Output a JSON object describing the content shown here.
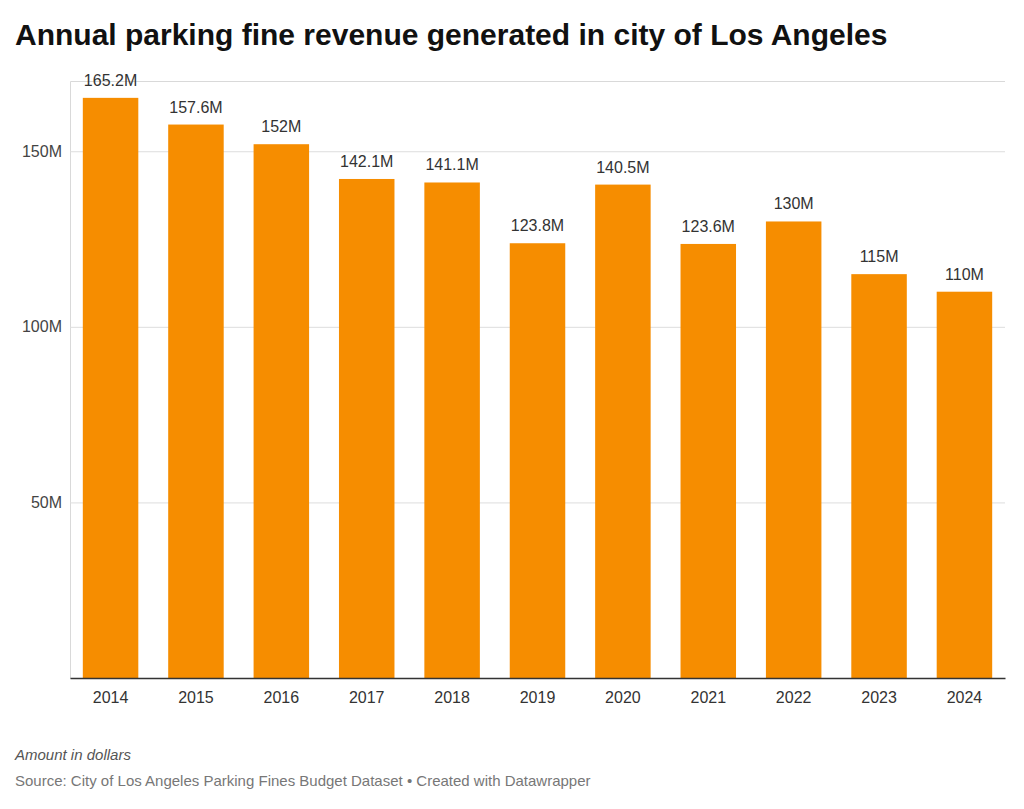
{
  "chart_data": {
    "type": "bar",
    "title": "Annual parking fine revenue generated in city of Los Angeles",
    "notes": [
      "Amount in dollars",
      "Source: City of Los Angeles Parking Fines Budget Dataset • Created with Datawrapper"
    ],
    "categories": [
      "2014",
      "2015",
      "2016",
      "2017",
      "2018",
      "2019",
      "2020",
      "2021",
      "2022",
      "2023",
      "2024"
    ],
    "values": [
      165.2,
      157.6,
      152,
      142.1,
      141.1,
      123.8,
      140.5,
      123.6,
      130,
      115,
      110
    ],
    "value_labels": [
      "165.2M",
      "157.6M",
      "152M",
      "142.1M",
      "141.1M",
      "123.8M",
      "140.5M",
      "123.6M",
      "130M",
      "115M",
      "110M"
    ],
    "color": "#f68d00",
    "ylim": [
      0,
      170
    ],
    "yticks": [
      {
        "value": 50,
        "label": "50M"
      },
      {
        "value": 100,
        "label": "100M"
      },
      {
        "value": 150,
        "label": "150M"
      }
    ],
    "grid": true,
    "data_labels": true
  }
}
